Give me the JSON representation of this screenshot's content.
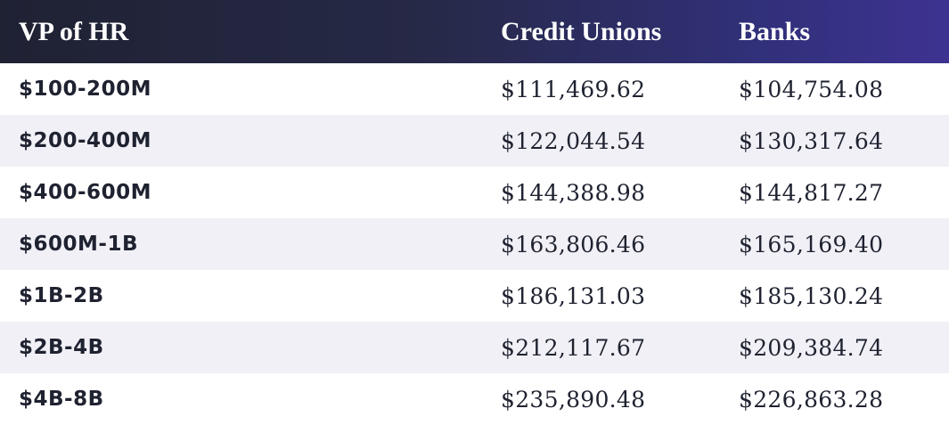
{
  "table": {
    "headers": [
      "VP of HR",
      "Credit Unions",
      "Banks"
    ],
    "rows": [
      {
        "label": "$100-200M",
        "credit_unions": "$111,469.62",
        "banks": "$104,754.08"
      },
      {
        "label": "$200-400M",
        "credit_unions": "$122,044.54",
        "banks": "$130,317.64"
      },
      {
        "label": "$400-600M",
        "credit_unions": "$144,388.98",
        "banks": "$144,817.27"
      },
      {
        "label": "$600M-1B",
        "credit_unions": "$163,806.46",
        "banks": "$165,169.40"
      },
      {
        "label": "$1B-2B",
        "credit_unions": "$186,131.03",
        "banks": "$185,130.24"
      },
      {
        "label": "$2B-4B",
        "credit_unions": "$212,117.67",
        "banks": "$209,384.74"
      },
      {
        "label": "$4B-8B",
        "credit_unions": "$235,890.48",
        "banks": "$226,863.28"
      }
    ]
  },
  "colors": {
    "header_start": "#1f2233",
    "header_end": "#3d3391",
    "row_alt": "#f0f0f6",
    "text": "#1f2230"
  }
}
